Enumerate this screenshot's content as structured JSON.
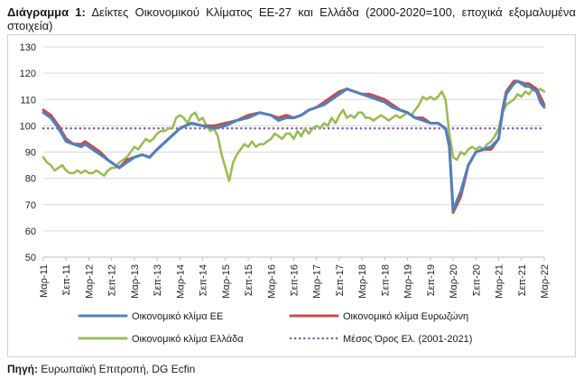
{
  "header": {
    "label": "Διάγραμμα 1:",
    "text": "Δείκτες Οικονομικού Κλίματος ΕΕ-27 και Ελλάδα (2000-2020=100, εποχικά εξομαλυμένα στοιχεία)"
  },
  "source": {
    "label": "Πηγή:",
    "text": "Ευρωπαϊκή Επιτροπή, DG Ecfin"
  },
  "colors": {
    "eu": "#4f81bd",
    "ez": "#c0504d",
    "gr": "#9bbb59",
    "avg": "#7f5fa5",
    "grid": "#d9d9d9"
  },
  "chart_data": {
    "type": "line",
    "title": "Δείκτες Οικονομικού Κλίματος ΕΕ-27 και Ελλάδα (2000-2020=100, εποχικά εξομαλυμένα στοιχεία)",
    "ylim": [
      50,
      130
    ],
    "yticks": [
      50,
      60,
      70,
      80,
      90,
      100,
      110,
      120,
      130
    ],
    "x_range_months": [
      0,
      132
    ],
    "x_ticks": [
      {
        "m": 0,
        "label": "Μαρ-11"
      },
      {
        "m": 6,
        "label": "Σεπ-11"
      },
      {
        "m": 12,
        "label": "Μαρ-12"
      },
      {
        "m": 18,
        "label": "Σεπ-12"
      },
      {
        "m": 24,
        "label": "Μαρ-13"
      },
      {
        "m": 30,
        "label": "Σεπ-13"
      },
      {
        "m": 36,
        "label": "Μαρ-14"
      },
      {
        "m": 42,
        "label": "Σεπ-14"
      },
      {
        "m": 48,
        "label": "Μαρ-15"
      },
      {
        "m": 54,
        "label": "Σεπ-15"
      },
      {
        "m": 60,
        "label": "Μαρ-16"
      },
      {
        "m": 66,
        "label": "Σεπ-16"
      },
      {
        "m": 72,
        "label": "Μαρ-17"
      },
      {
        "m": 78,
        "label": "Σεπ-17"
      },
      {
        "m": 84,
        "label": "Μαρ-18"
      },
      {
        "m": 90,
        "label": "Σεπ-18"
      },
      {
        "m": 96,
        "label": "Μαρ-19"
      },
      {
        "m": 102,
        "label": "Σεπ-19"
      },
      {
        "m": 108,
        "label": "Μαρ-20"
      },
      {
        "m": 114,
        "label": "Σεπ-20"
      },
      {
        "m": 120,
        "label": "Μαρ-21"
      },
      {
        "m": 126,
        "label": "Σεπ-21"
      },
      {
        "m": 132,
        "label": "Μαρ-22"
      }
    ],
    "series": [
      {
        "name": "Οικονομικό κλίμα ΕΕ",
        "key": "eu",
        "points": [
          [
            0,
            105
          ],
          [
            2,
            103
          ],
          [
            4,
            99
          ],
          [
            6,
            94
          ],
          [
            8,
            93
          ],
          [
            10,
            92
          ],
          [
            11,
            93
          ],
          [
            13,
            91
          ],
          [
            15,
            89
          ],
          [
            17,
            87
          ],
          [
            19,
            85
          ],
          [
            20,
            84
          ],
          [
            22,
            86
          ],
          [
            24,
            88
          ],
          [
            26,
            89
          ],
          [
            28,
            88
          ],
          [
            30,
            91
          ],
          [
            33,
            95
          ],
          [
            36,
            99
          ],
          [
            39,
            101
          ],
          [
            42,
            100
          ],
          [
            45,
            99
          ],
          [
            48,
            100
          ],
          [
            51,
            102
          ],
          [
            54,
            103
          ],
          [
            57,
            105
          ],
          [
            60,
            104
          ],
          [
            62,
            102
          ],
          [
            64,
            103
          ],
          [
            66,
            103
          ],
          [
            68,
            104
          ],
          [
            70,
            106
          ],
          [
            72,
            107
          ],
          [
            74,
            108
          ],
          [
            76,
            110
          ],
          [
            78,
            112
          ],
          [
            80,
            114
          ],
          [
            82,
            113
          ],
          [
            84,
            112
          ],
          [
            86,
            111
          ],
          [
            88,
            110
          ],
          [
            90,
            109
          ],
          [
            92,
            107
          ],
          [
            94,
            106
          ],
          [
            96,
            105
          ],
          [
            98,
            103
          ],
          [
            100,
            102
          ],
          [
            102,
            101
          ],
          [
            104,
            101
          ],
          [
            106,
            99
          ],
          [
            107,
            92
          ],
          [
            108,
            68
          ],
          [
            110,
            75
          ],
          [
            112,
            85
          ],
          [
            114,
            90
          ],
          [
            116,
            91
          ],
          [
            118,
            92
          ],
          [
            120,
            95
          ],
          [
            121,
            105
          ],
          [
            122,
            112
          ],
          [
            124,
            116
          ],
          [
            125,
            117
          ],
          [
            127,
            115
          ],
          [
            128,
            115
          ],
          [
            130,
            113
          ],
          [
            131,
            109
          ],
          [
            132,
            107
          ]
        ]
      },
      {
        "name": "Οικονομικό κλίμα Ευρωζώνη",
        "key": "ez",
        "points": [
          [
            0,
            106
          ],
          [
            2,
            104
          ],
          [
            4,
            100
          ],
          [
            6,
            95
          ],
          [
            8,
            93
          ],
          [
            10,
            93
          ],
          [
            11,
            94
          ],
          [
            13,
            92
          ],
          [
            15,
            90
          ],
          [
            17,
            87
          ],
          [
            19,
            85
          ],
          [
            20,
            84
          ],
          [
            22,
            87
          ],
          [
            24,
            88
          ],
          [
            26,
            89
          ],
          [
            28,
            88
          ],
          [
            30,
            91
          ],
          [
            33,
            95
          ],
          [
            36,
            99
          ],
          [
            39,
            101
          ],
          [
            42,
            100
          ],
          [
            45,
            100
          ],
          [
            48,
            101
          ],
          [
            51,
            102
          ],
          [
            54,
            104
          ],
          [
            57,
            105
          ],
          [
            60,
            104
          ],
          [
            62,
            103
          ],
          [
            64,
            104
          ],
          [
            66,
            103
          ],
          [
            68,
            104
          ],
          [
            70,
            106
          ],
          [
            72,
            107
          ],
          [
            74,
            109
          ],
          [
            76,
            111
          ],
          [
            78,
            113
          ],
          [
            80,
            114
          ],
          [
            82,
            113
          ],
          [
            84,
            112
          ],
          [
            86,
            112
          ],
          [
            88,
            111
          ],
          [
            90,
            110
          ],
          [
            92,
            108
          ],
          [
            94,
            106
          ],
          [
            96,
            105
          ],
          [
            98,
            103
          ],
          [
            100,
            103
          ],
          [
            102,
            101
          ],
          [
            104,
            101
          ],
          [
            106,
            99
          ],
          [
            107,
            93
          ],
          [
            108,
            67
          ],
          [
            110,
            73
          ],
          [
            112,
            85
          ],
          [
            114,
            90
          ],
          [
            116,
            91
          ],
          [
            118,
            91
          ],
          [
            120,
            95
          ],
          [
            121,
            106
          ],
          [
            122,
            113
          ],
          [
            124,
            117
          ],
          [
            125,
            117
          ],
          [
            127,
            116
          ],
          [
            128,
            116
          ],
          [
            130,
            114
          ],
          [
            131,
            111
          ],
          [
            132,
            108
          ]
        ]
      },
      {
        "name": "Οικονομικό κλίμα Ελλάδα",
        "key": "gr",
        "points": [
          [
            0,
            88
          ],
          [
            1,
            86
          ],
          [
            2,
            85
          ],
          [
            3,
            83
          ],
          [
            4,
            84
          ],
          [
            5,
            85
          ],
          [
            6,
            83
          ],
          [
            7,
            82
          ],
          [
            8,
            82
          ],
          [
            9,
            83
          ],
          [
            10,
            82
          ],
          [
            11,
            83
          ],
          [
            12,
            82
          ],
          [
            13,
            82
          ],
          [
            14,
            83
          ],
          [
            15,
            82
          ],
          [
            16,
            81
          ],
          [
            17,
            83
          ],
          [
            18,
            84
          ],
          [
            19,
            84
          ],
          [
            20,
            86
          ],
          [
            21,
            87
          ],
          [
            22,
            88
          ],
          [
            23,
            90
          ],
          [
            24,
            92
          ],
          [
            25,
            91
          ],
          [
            26,
            93
          ],
          [
            27,
            95
          ],
          [
            28,
            94
          ],
          [
            29,
            95
          ],
          [
            30,
            97
          ],
          [
            31,
            98
          ],
          [
            32,
            98
          ],
          [
            33,
            99
          ],
          [
            34,
            99
          ],
          [
            35,
            103
          ],
          [
            36,
            104
          ],
          [
            37,
            103
          ],
          [
            38,
            101
          ],
          [
            39,
            104
          ],
          [
            40,
            105
          ],
          [
            41,
            102
          ],
          [
            42,
            103
          ],
          [
            43,
            100
          ],
          [
            44,
            98
          ],
          [
            45,
            99
          ],
          [
            46,
            96
          ],
          [
            47,
            89
          ],
          [
            48,
            84
          ],
          [
            49,
            79
          ],
          [
            50,
            86
          ],
          [
            51,
            89
          ],
          [
            52,
            91
          ],
          [
            53,
            93
          ],
          [
            54,
            92
          ],
          [
            55,
            94
          ],
          [
            56,
            92
          ],
          [
            57,
            93
          ],
          [
            58,
            93
          ],
          [
            59,
            94
          ],
          [
            60,
            95
          ],
          [
            61,
            97
          ],
          [
            62,
            96
          ],
          [
            63,
            95
          ],
          [
            64,
            97
          ],
          [
            65,
            97
          ],
          [
            66,
            95
          ],
          [
            67,
            98
          ],
          [
            68,
            96
          ],
          [
            69,
            99
          ],
          [
            70,
            97
          ],
          [
            71,
            99
          ],
          [
            72,
            100
          ],
          [
            73,
            99
          ],
          [
            74,
            101
          ],
          [
            75,
            100
          ],
          [
            76,
            103
          ],
          [
            77,
            101
          ],
          [
            78,
            104
          ],
          [
            79,
            106
          ],
          [
            80,
            103
          ],
          [
            81,
            104
          ],
          [
            82,
            103
          ],
          [
            83,
            105
          ],
          [
            84,
            105
          ],
          [
            85,
            103
          ],
          [
            86,
            103
          ],
          [
            87,
            102
          ],
          [
            88,
            103
          ],
          [
            89,
            104
          ],
          [
            90,
            103
          ],
          [
            91,
            102
          ],
          [
            92,
            103
          ],
          [
            93,
            104
          ],
          [
            94,
            103
          ],
          [
            95,
            104
          ],
          [
            96,
            105
          ],
          [
            97,
            104
          ],
          [
            98,
            106
          ],
          [
            99,
            108
          ],
          [
            100,
            111
          ],
          [
            101,
            110
          ],
          [
            102,
            111
          ],
          [
            103,
            110
          ],
          [
            104,
            111
          ],
          [
            105,
            113
          ],
          [
            106,
            110
          ],
          [
            107,
            97
          ],
          [
            108,
            88
          ],
          [
            109,
            87
          ],
          [
            110,
            90
          ],
          [
            111,
            89
          ],
          [
            112,
            91
          ],
          [
            113,
            92
          ],
          [
            114,
            91
          ],
          [
            115,
            92
          ],
          [
            116,
            91
          ],
          [
            117,
            93
          ],
          [
            118,
            94
          ],
          [
            119,
            96
          ],
          [
            120,
            99
          ],
          [
            121,
            105
          ],
          [
            122,
            108
          ],
          [
            123,
            109
          ],
          [
            124,
            110
          ],
          [
            125,
            112
          ],
          [
            126,
            111
          ],
          [
            127,
            113
          ],
          [
            128,
            112
          ],
          [
            129,
            114
          ],
          [
            130,
            113
          ],
          [
            131,
            114
          ],
          [
            132,
            113
          ]
        ]
      },
      {
        "name": "Μέσος Όρος Ελ. (2001-2021)",
        "key": "avg",
        "points": [
          [
            0,
            99
          ],
          [
            132,
            99
          ]
        ]
      }
    ],
    "legend": [
      {
        "key": "eu",
        "label": "Οικονομικό κλίμα ΕΕ",
        "style": "solid"
      },
      {
        "key": "ez",
        "label": "Οικονομικό κλίμα Ευρωζώνη",
        "style": "solid"
      },
      {
        "key": "gr",
        "label": "Οικονομικό κλίμα Ελλάδα",
        "style": "solid"
      },
      {
        "key": "avg",
        "label": "Μέσος Όρος Ελ. (2001-2021)",
        "style": "dotted"
      }
    ]
  }
}
